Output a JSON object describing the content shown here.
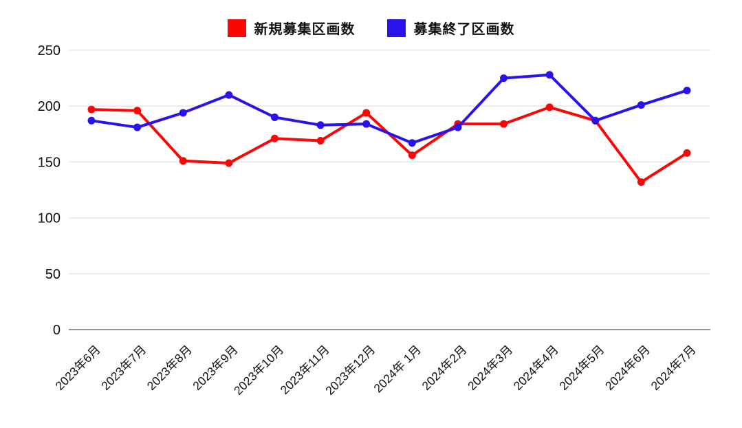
{
  "chart_data": {
    "type": "line",
    "title": "",
    "xlabel": "",
    "ylabel": "",
    "categories": [
      "2023年6月",
      "2023年7月",
      "2023年8月",
      "2023年9月",
      "2023年10月",
      "2023年11月",
      "2023年12月",
      "2024年 1月",
      "2024年2月",
      "2024年3月",
      "2024年4月",
      "2024年5月",
      "2024年6月",
      "2024年7月"
    ],
    "series": [
      {
        "name": "新規募集区画数",
        "color": "#fb0606",
        "values": [
          197,
          196,
          151,
          149,
          171,
          169,
          194,
          156,
          184,
          184,
          199,
          187,
          132,
          158
        ]
      },
      {
        "name": "募集終了区画数",
        "color": "#2a12eb",
        "values": [
          187,
          181,
          194,
          210,
          190,
          183,
          184,
          167,
          181,
          225,
          228,
          187,
          201,
          214
        ]
      }
    ],
    "ylim": [
      0,
      250
    ],
    "yticks": [
      0,
      50,
      100,
      150,
      200,
      250
    ],
    "grid": "horizontal",
    "gridline_color": "#e6e6e6",
    "baseline_color": "#949494",
    "text_color": "#111111",
    "legend_position": "top",
    "x_label_rotation_deg": -45
  }
}
